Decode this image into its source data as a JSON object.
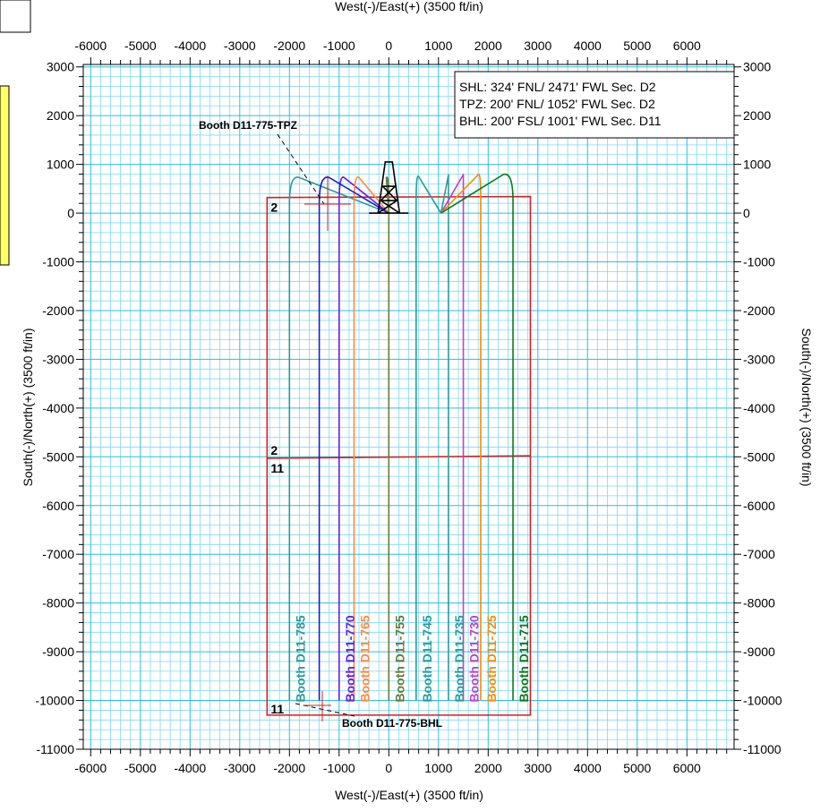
{
  "colors": {
    "grid_minor": "#7fd9ee",
    "grid_major": "#2bbfe0",
    "plot_bg": "#ffffff",
    "lease": "#d42020",
    "well_715": "#0e7a1e",
    "well_725": "#ff8a00",
    "well_730": "#c040d0",
    "well_735": "#2a9a9a",
    "well_745": "#2a9a9a",
    "well_755": "#6b7a3a",
    "well_765": "#ff8a40",
    "well_770": "#6a1ee0",
    "well_775": "#1a1ad0",
    "well_785": "#2a9a9a",
    "rig": "#000000"
  },
  "chart_data": {
    "type": "line",
    "x_axis_top": {
      "label": "West(-)/East(+) (3500 ft/in)",
      "ticks": [
        -6000,
        -5000,
        -4000,
        -3000,
        -2000,
        -1000,
        0,
        1000,
        2000,
        3000,
        4000,
        5000,
        6000
      ]
    },
    "x_axis_bottom": {
      "label": "West(-)/East(+) (3500 ft/in)",
      "ticks": [
        -6000,
        -5000,
        -4000,
        -3000,
        -2000,
        -1000,
        0,
        1000,
        2000,
        3000,
        4000,
        5000,
        6000
      ]
    },
    "y_axis_left": {
      "label": "South(-)/North(+) (3500 ft/in)",
      "ticks": [
        3000,
        2000,
        1000,
        0,
        -1000,
        -2000,
        -3000,
        -4000,
        -5000,
        -6000,
        -7000,
        -8000,
        -9000,
        -10000,
        -11000
      ]
    },
    "y_axis_right": {
      "label": "South(-)/North(+) (3500 ft/in)",
      "ticks": [
        3000,
        2000,
        1000,
        0,
        -1000,
        -2000,
        -3000,
        -4000,
        -5000,
        -6000,
        -7000,
        -8000,
        -9000,
        -10000,
        -11000
      ]
    },
    "xlim": [
      -6150,
      6950
    ],
    "ylim": [
      -11000,
      3050
    ],
    "grid": true,
    "info_box": [
      "SHL: 324' FNL/ 2471' FWL Sec. D2",
      "TPZ: 200' FNL/ 1052' FWL Sec. D2",
      "BHL: 200' FSL/ 1001' FWL Sec. D11"
    ],
    "annotations": {
      "tpz": "Booth  D11-775-TPZ",
      "bhl": "Booth  D11-775-BHL"
    },
    "sections": [
      {
        "label": "2",
        "corner": "top-left"
      },
      {
        "label": "2",
        "corner": "boundary-upper"
      },
      {
        "label": "11",
        "corner": "boundary-lower"
      },
      {
        "label": "11",
        "corner": "bottom-left"
      }
    ],
    "lease_outline": {
      "top_left": [
        -2450,
        320
      ],
      "top_right": [
        2850,
        340
      ],
      "bottom_left": [
        -2450,
        -10300
      ],
      "bottom_right": [
        2850,
        -10300
      ],
      "divider": [
        [
          -2450,
          -5030
        ],
        [
          2850,
          -4980
        ]
      ]
    },
    "rig": {
      "x": 0,
      "y": 0,
      "height": 1050
    },
    "wells": [
      {
        "label": "Booth  D11-785",
        "color_key": "well_785",
        "lateral_x": -2000,
        "peak_x": -1800,
        "peak_y": 730,
        "shl_x": 0,
        "shl_y": 0,
        "toe_y": -10000
      },
      {
        "label": "Booth  D11-770",
        "color_key": "well_770",
        "lateral_x": -1000,
        "peak_x": -900,
        "peak_y": 730,
        "shl_x": 0,
        "shl_y": 0,
        "toe_y": -10000
      },
      {
        "label": "Booth  D11-765",
        "color_key": "well_765",
        "lateral_x": -700,
        "peak_x": -600,
        "peak_y": 730,
        "shl_x": 0,
        "shl_y": 0,
        "toe_y": -10000
      },
      {
        "label": "Booth  D11-755",
        "color_key": "well_755",
        "lateral_x": 0,
        "peak_x": -50,
        "peak_y": 730,
        "shl_x": 0,
        "shl_y": 0,
        "toe_y": -10000
      },
      {
        "label": "Booth  D11-745",
        "color_key": "well_745",
        "lateral_x": 550,
        "peak_x": 600,
        "peak_y": 750,
        "shl_x": 1050,
        "shl_y": 0,
        "toe_y": -10000
      },
      {
        "label": "Booth  D11-735",
        "color_key": "well_735",
        "lateral_x": 1200,
        "peak_x": 1200,
        "peak_y": 780,
        "shl_x": 1050,
        "shl_y": 0,
        "toe_y": -10000
      },
      {
        "label": "Booth  D11-730",
        "color_key": "well_730",
        "lateral_x": 1500,
        "peak_x": 1500,
        "peak_y": 790,
        "shl_x": 1050,
        "shl_y": 0,
        "toe_y": -10000
      },
      {
        "label": "Booth  D11-725",
        "color_key": "well_725",
        "lateral_x": 1850,
        "peak_x": 1800,
        "peak_y": 790,
        "shl_x": 1050,
        "shl_y": 0,
        "toe_y": -10000
      },
      {
        "label": "Booth  D11-715",
        "color_key": "well_715",
        "lateral_x": 2500,
        "peak_x": 2300,
        "peak_y": 790,
        "shl_x": 1050,
        "shl_y": 0,
        "toe_y": -10000
      },
      {
        "label": "",
        "color_key": "well_775",
        "lateral_x": -1400,
        "peak_x": -1200,
        "peak_y": 730,
        "shl_x": 0,
        "shl_y": 0,
        "toe_y": -10000
      }
    ]
  }
}
